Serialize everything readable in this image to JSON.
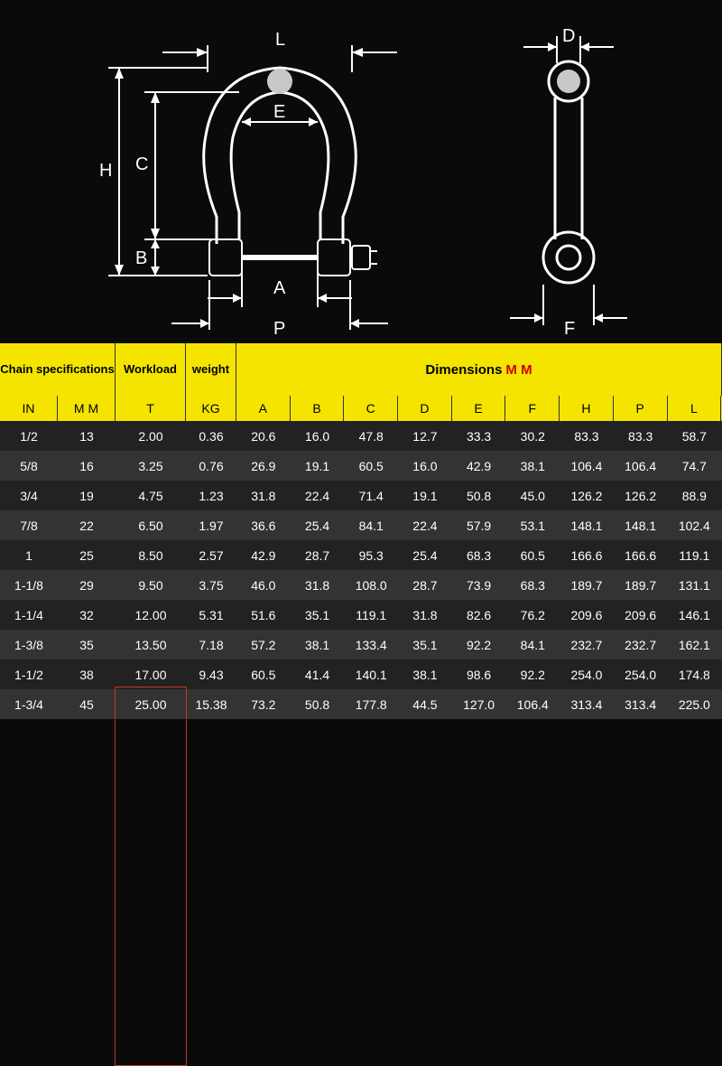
{
  "diagram": {
    "stroke_color": "#ffffff",
    "fill_color": "#c8c8c8",
    "labels_front": [
      "L",
      "E",
      "H",
      "C",
      "B",
      "A",
      "P"
    ],
    "labels_side": [
      "D",
      "F"
    ]
  },
  "table": {
    "header": {
      "chain_spec": "Chain specifications",
      "workload": "Workload",
      "weight": "weight",
      "dimensions": "Dimensions",
      "dimensions_unit": "M M"
    },
    "subheader": {
      "in": "IN",
      "mm": "M M",
      "t": "T",
      "kg": "KG",
      "dims": [
        "A",
        "B",
        "C",
        "D",
        "E",
        "F",
        "H",
        "P",
        "L"
      ]
    },
    "rows": [
      {
        "in": "1/2",
        "mm": "13",
        "t": "2.00",
        "kg": "0.36",
        "dims": [
          "20.6",
          "16.0",
          "47.8",
          "12.7",
          "33.3",
          "30.2",
          "83.3",
          "83.3",
          "58.7"
        ]
      },
      {
        "in": "5/8",
        "mm": "16",
        "t": "3.25",
        "kg": "0.76",
        "dims": [
          "26.9",
          "19.1",
          "60.5",
          "16.0",
          "42.9",
          "38.1",
          "106.4",
          "106.4",
          "74.7"
        ]
      },
      {
        "in": "3/4",
        "mm": "19",
        "t": "4.75",
        "kg": "1.23",
        "dims": [
          "31.8",
          "22.4",
          "71.4",
          "19.1",
          "50.8",
          "45.0",
          "126.2",
          "126.2",
          "88.9"
        ]
      },
      {
        "in": "7/8",
        "mm": "22",
        "t": "6.50",
        "kg": "1.97",
        "dims": [
          "36.6",
          "25.4",
          "84.1",
          "22.4",
          "57.9",
          "53.1",
          "148.1",
          "148.1",
          "102.4"
        ]
      },
      {
        "in": "1",
        "mm": "25",
        "t": "8.50",
        "kg": "2.57",
        "dims": [
          "42.9",
          "28.7",
          "95.3",
          "25.4",
          "68.3",
          "60.5",
          "166.6",
          "166.6",
          "119.1"
        ]
      },
      {
        "in": "1-1/8",
        "mm": "29",
        "t": "9.50",
        "kg": "3.75",
        "dims": [
          "46.0",
          "31.8",
          "108.0",
          "28.7",
          "73.9",
          "68.3",
          "189.7",
          "189.7",
          "131.1"
        ]
      },
      {
        "in": "1-1/4",
        "mm": "32",
        "t": "12.00",
        "kg": "5.31",
        "dims": [
          "51.6",
          "35.1",
          "119.1",
          "31.8",
          "82.6",
          "76.2",
          "209.6",
          "209.6",
          "146.1"
        ]
      },
      {
        "in": "1-3/8",
        "mm": "35",
        "t": "13.50",
        "kg": "7.18",
        "dims": [
          "57.2",
          "38.1",
          "133.4",
          "35.1",
          "92.2",
          "84.1",
          "232.7",
          "232.7",
          "162.1"
        ]
      },
      {
        "in": "1-1/2",
        "mm": "38",
        "t": "17.00",
        "kg": "9.43",
        "dims": [
          "60.5",
          "41.4",
          "140.1",
          "38.1",
          "98.6",
          "92.2",
          "254.0",
          "254.0",
          "174.8"
        ]
      },
      {
        "in": "1-3/4",
        "mm": "45",
        "t": "25.00",
        "kg": "15.38",
        "dims": [
          "73.2",
          "50.8",
          "177.8",
          "44.5",
          "127.0",
          "106.4",
          "313.4",
          "313.4",
          "225.0"
        ]
      }
    ],
    "highlight_column": "t",
    "colors": {
      "header_bg": "#f5e400",
      "row_even": "#222222",
      "row_odd": "#333333",
      "text": "#ffffff",
      "highlight_border": "#c0392b",
      "unit_accent": "#cc0000"
    }
  }
}
